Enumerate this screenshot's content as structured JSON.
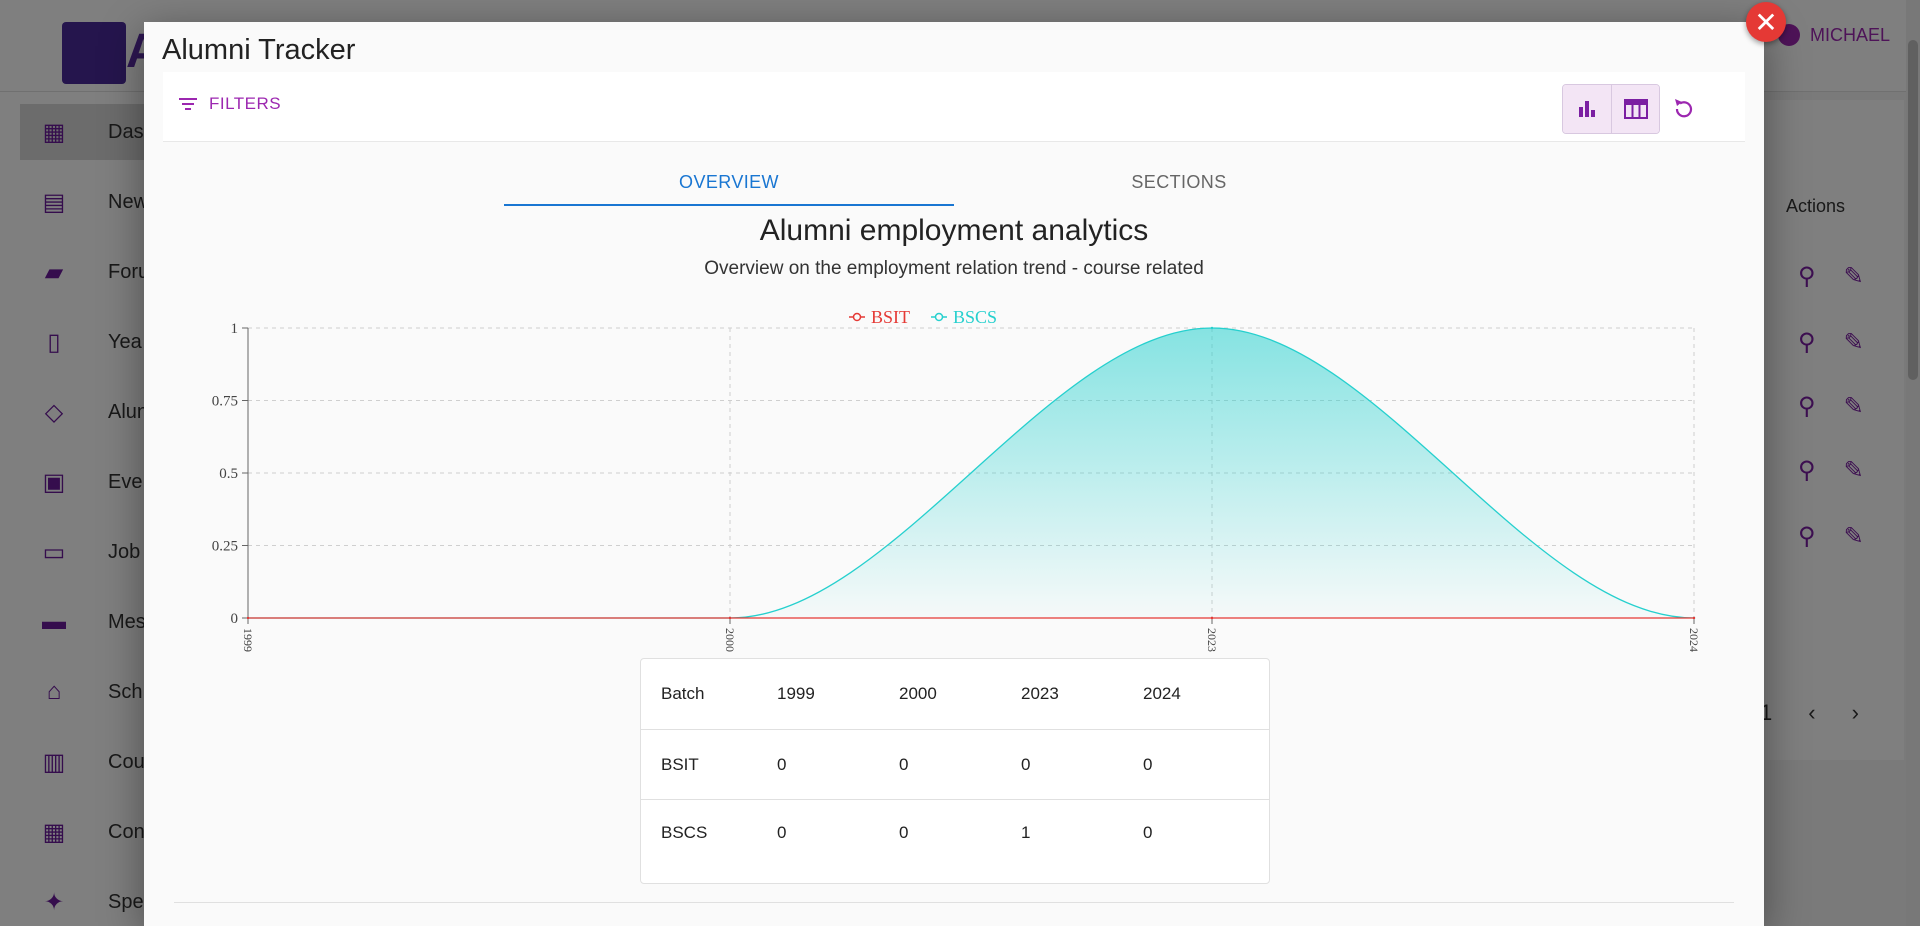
{
  "background": {
    "logo_letter": "A",
    "user_name": "MICHAEL",
    "nav": [
      {
        "label": "Das",
        "icon": "dashboard-icon"
      },
      {
        "label": "New",
        "icon": "newspaper-icon"
      },
      {
        "label": "Foru",
        "icon": "forum-icon"
      },
      {
        "label": "Yea",
        "icon": "book-icon"
      },
      {
        "label": "Alun",
        "icon": "graduation-cap-icon"
      },
      {
        "label": "Eve",
        "icon": "calendar-icon"
      },
      {
        "label": "Job",
        "icon": "briefcase-icon"
      },
      {
        "label": "Mes",
        "icon": "message-icon"
      },
      {
        "label": "Sch",
        "icon": "school-icon"
      },
      {
        "label": "Cou",
        "icon": "library-icon"
      },
      {
        "label": "Con",
        "icon": "building-icon"
      },
      {
        "label": "Spe",
        "icon": "award-icon"
      }
    ],
    "actions_header": "Actions",
    "pager_page": "1"
  },
  "modal": {
    "title": "Alumni Tracker",
    "close_icon": "close-icon",
    "filters_label": "FILTERS",
    "tabs": [
      {
        "label": "OVERVIEW"
      },
      {
        "label": "SECTIONS"
      }
    ]
  },
  "colors": {
    "accent": "#9c27b0",
    "tab_active": "#1976d2",
    "bsit": "#e53935",
    "bscs": "#26d0ce",
    "close": "#e53935"
  },
  "chart_data": {
    "type": "area",
    "title": "Alumni employment analytics",
    "subtitle": "Overview on the employment relation trend - course related",
    "categories": [
      "1999",
      "2000",
      "2023",
      "2024"
    ],
    "series": [
      {
        "name": "BSIT",
        "values": [
          0,
          0,
          0,
          0
        ],
        "color": "#e53935"
      },
      {
        "name": "BSCS",
        "values": [
          0,
          0,
          1,
          0
        ],
        "color": "#26d0ce"
      }
    ],
    "ylim": [
      0,
      1
    ],
    "yticks": [
      "0",
      "0.25",
      "0.5",
      "0.75",
      "1"
    ],
    "grid": true,
    "legend_position": "top-center"
  },
  "table": {
    "header": [
      "Batch",
      "1999",
      "2000",
      "2023",
      "2024"
    ],
    "rows": [
      [
        "BSIT",
        "0",
        "0",
        "0",
        "0"
      ],
      [
        "BSCS",
        "0",
        "0",
        "1",
        "0"
      ]
    ]
  }
}
